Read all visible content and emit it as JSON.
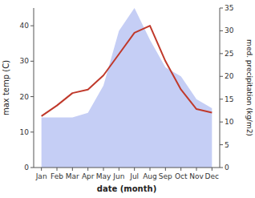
{
  "chart_data": {
    "type": "line",
    "xlabel": "date (month)",
    "ylabel": "max temp (C)",
    "y2label": "med. precipitation (kg/m2)",
    "categories": [
      "Jan",
      "Feb",
      "Mar",
      "Apr",
      "May",
      "Jun",
      "Jul",
      "Aug",
      "Sep",
      "Oct",
      "Nov",
      "Dec"
    ],
    "series": [
      {
        "type": "area",
        "axis": "y2",
        "color": "#c5cef5",
        "values": [
          11,
          11,
          11,
          12,
          18,
          30,
          35,
          28,
          22,
          20,
          15,
          13
        ]
      },
      {
        "type": "line",
        "color": "#c0392b",
        "values": [
          14.5,
          17.5,
          21.0,
          22.0,
          26.0,
          32.0,
          38.0,
          40.0,
          30.0,
          22.0,
          16.5,
          15.5
        ]
      }
    ],
    "ylim": [
      0,
      45
    ],
    "yticks": [
      0,
      10,
      20,
      30,
      40
    ],
    "y2lim": [
      0,
      35
    ],
    "y2ticks": [
      0,
      5,
      10,
      15,
      20,
      25,
      30,
      35
    ],
    "grid": false
  }
}
